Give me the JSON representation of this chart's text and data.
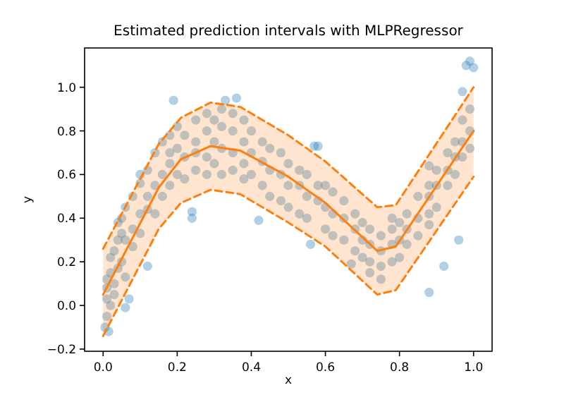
{
  "chart_data": {
    "type": "scatter",
    "title": "Estimated prediction intervals with MLPRegressor",
    "xlabel": "x",
    "ylabel": "y",
    "xlim": [
      -0.05,
      1.05
    ],
    "ylim": [
      -0.21,
      1.18
    ],
    "xticks": [
      {
        "value": 0,
        "label": "0.0"
      },
      {
        "value": 0.2,
        "label": "0.2"
      },
      {
        "value": 0.4,
        "label": "0.4"
      },
      {
        "value": 0.6,
        "label": "0.6"
      },
      {
        "value": 0.8,
        "label": "0.8"
      },
      {
        "value": 1,
        "label": "1.0"
      }
    ],
    "yticks": [
      {
        "value": -0.2,
        "label": "−0.2"
      },
      {
        "value": 0,
        "label": "0.0"
      },
      {
        "value": 0.2,
        "label": "0.2"
      },
      {
        "value": 0.4,
        "label": "0.4"
      },
      {
        "value": 0.6,
        "label": "0.6"
      },
      {
        "value": 0.8,
        "label": "0.8"
      },
      {
        "value": 1,
        "label": "1.0"
      }
    ],
    "grid": false,
    "series": [
      {
        "color": "#1f77b4",
        "marker": "circle",
        "x": [
          0.005,
          0.015,
          0.01,
          0.01,
          0.01,
          0.01,
          0.02,
          0.02,
          0.02,
          0.03,
          0.03,
          0.03,
          0.04,
          0.04,
          0.04,
          0.05,
          0.05,
          0.05,
          0.06,
          0.06,
          0.06,
          0.06,
          0.07,
          0.08,
          0.08,
          0.08,
          0.1,
          0.1,
          0.1,
          0.1,
          0.12,
          0.12,
          0.12,
          0.12,
          0.14,
          0.14,
          0.14,
          0.16,
          0.16,
          0.16,
          0.18,
          0.18,
          0.18,
          0.18,
          0.19,
          0.2,
          0.2,
          0.2,
          0.22,
          0.22,
          0.22,
          0.24,
          0.24,
          0.25,
          0.25,
          0.25,
          0.25,
          0.28,
          0.28,
          0.28,
          0.28,
          0.3,
          0.3,
          0.3,
          0.32,
          0.32,
          0.32,
          0.32,
          0.33,
          0.35,
          0.35,
          0.35,
          0.35,
          0.36,
          0.38,
          0.38,
          0.38,
          0.38,
          0.4,
          0.4,
          0.4,
          0.42,
          0.43,
          0.43,
          0.43,
          0.45,
          0.45,
          0.45,
          0.48,
          0.48,
          0.48,
          0.5,
          0.5,
          0.5,
          0.53,
          0.53,
          0.53,
          0.55,
          0.55,
          0.55,
          0.56,
          0.57,
          0.58,
          0.58,
          0.58,
          0.6,
          0.6,
          0.6,
          0.62,
          0.62,
          0.62,
          0.65,
          0.65,
          0.65,
          0.67,
          0.68,
          0.68,
          0.68,
          0.7,
          0.7,
          0.7,
          0.72,
          0.72,
          0.72,
          0.72,
          0.75,
          0.75,
          0.75,
          0.75,
          0.78,
          0.78,
          0.78,
          0.78,
          0.8,
          0.8,
          0.8,
          0.82,
          0.82,
          0.82,
          0.85,
          0.85,
          0.85,
          0.88,
          0.88,
          0.88,
          0.88,
          0.88,
          0.88,
          0.9,
          0.9,
          0.9,
          0.92,
          0.93,
          0.93,
          0.93,
          0.95,
          0.95,
          0.95,
          0.96,
          0.97,
          0.97,
          0.97,
          0.97,
          0.98,
          0.99,
          0.99,
          0.99,
          0.99,
          1.0
        ],
        "values": [
          -0.1,
          -0.12,
          0.03,
          0.08,
          -0.05,
          0.12,
          0.15,
          0.0,
          0.22,
          0.25,
          0.1,
          0.05,
          0.3,
          0.17,
          0.38,
          0.2,
          0.33,
          0.4,
          0.45,
          0.3,
          0.13,
          -0.01,
          0.03,
          0.35,
          0.5,
          0.27,
          0.42,
          0.56,
          0.33,
          0.6,
          0.5,
          0.62,
          0.44,
          0.18,
          0.55,
          0.7,
          0.42,
          0.6,
          0.75,
          0.5,
          0.65,
          0.78,
          0.55,
          0.7,
          0.94,
          0.72,
          0.82,
          0.6,
          0.68,
          0.78,
          0.58,
          0.4,
          0.43,
          0.75,
          0.85,
          0.62,
          0.7,
          0.8,
          0.68,
          0.88,
          0.6,
          0.75,
          0.85,
          0.65,
          0.72,
          0.82,
          0.6,
          0.9,
          0.94,
          0.7,
          0.8,
          0.62,
          0.88,
          0.95,
          0.75,
          0.65,
          0.85,
          0.58,
          0.7,
          0.6,
          0.8,
          0.39,
          0.66,
          0.75,
          0.55,
          0.62,
          0.72,
          0.5,
          0.6,
          0.7,
          0.48,
          0.55,
          0.65,
          0.45,
          0.55,
          0.62,
          0.42,
          0.5,
          0.6,
          0.4,
          0.28,
          0.73,
          0.48,
          0.55,
          0.73,
          0.45,
          0.55,
          0.35,
          0.42,
          0.52,
          0.32,
          0.4,
          0.48,
          0.3,
          0.19,
          0.35,
          0.42,
          0.25,
          0.3,
          0.38,
          0.22,
          0.28,
          0.35,
          0.2,
          0.15,
          0.25,
          0.32,
          0.18,
          0.12,
          0.28,
          0.35,
          0.2,
          0.4,
          0.3,
          0.22,
          0.38,
          0.35,
          0.28,
          0.42,
          0.4,
          0.32,
          0.5,
          0.5,
          0.42,
          0.55,
          0.37,
          0.06,
          0.64,
          0.55,
          0.45,
          0.62,
          0.18,
          0.62,
          0.55,
          0.7,
          0.68,
          0.6,
          0.75,
          0.3,
          0.75,
          0.68,
          0.85,
          0.98,
          1.1,
          0.8,
          0.9,
          0.72,
          1.12,
          1.09
        ]
      },
      {
        "type": "line",
        "color": "#ff7f0e",
        "line_style": "solid",
        "marker": "none",
        "x": [
          0,
          0.15,
          0.21,
          0.29,
          0.37,
          0.5,
          0.6,
          0.74,
          0.79,
          1.0
        ],
        "values": [
          0.05,
          0.54,
          0.67,
          0.73,
          0.71,
          0.59,
          0.47,
          0.25,
          0.27,
          0.8
        ],
        "lower": [
          -0.14,
          0.35,
          0.47,
          0.53,
          0.51,
          0.38,
          0.27,
          0.05,
          0.07,
          0.59
        ],
        "upper": [
          0.26,
          0.74,
          0.86,
          0.93,
          0.91,
          0.78,
          0.66,
          0.45,
          0.46,
          1.0
        ]
      },
      {
        "type": "line",
        "color": "#ff7f0e",
        "line_style": "dashed",
        "marker": "none",
        "x": [
          0,
          0.15,
          0.21,
          0.29,
          0.37,
          0.5,
          0.6,
          0.74,
          0.79,
          1.0
        ],
        "values": [
          -0.14,
          0.35,
          0.47,
          0.53,
          0.51,
          0.38,
          0.27,
          0.05,
          0.07,
          0.59
        ]
      },
      {
        "type": "line",
        "color": "#ff7f0e",
        "line_style": "dashed",
        "marker": "none",
        "x": [
          0,
          0.15,
          0.21,
          0.29,
          0.37,
          0.5,
          0.6,
          0.74,
          0.79,
          1.0
        ],
        "values": [
          0.26,
          0.74,
          0.86,
          0.93,
          0.91,
          0.78,
          0.66,
          0.45,
          0.46,
          1.0
        ]
      }
    ]
  }
}
